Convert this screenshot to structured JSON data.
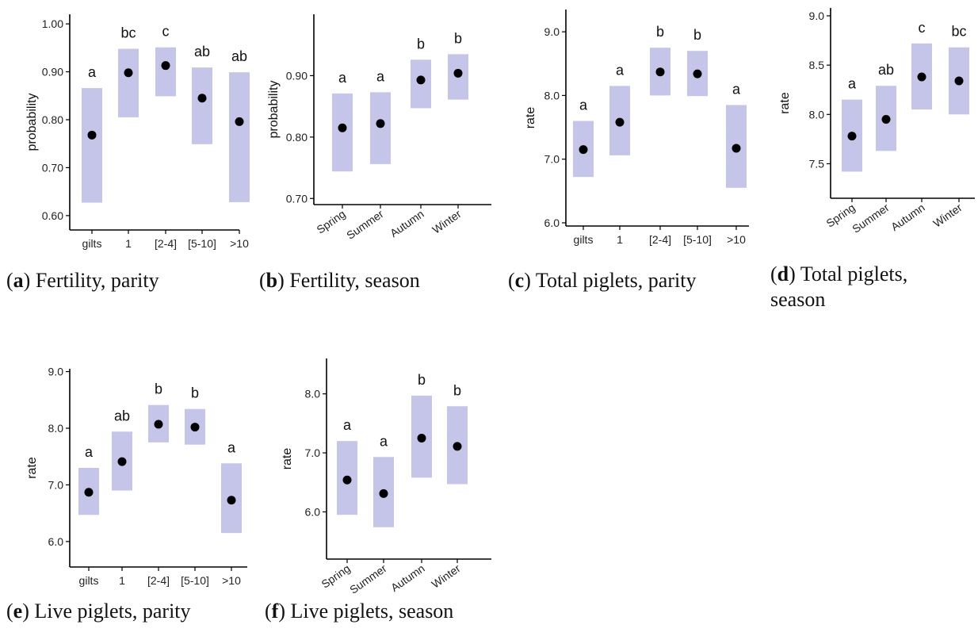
{
  "colors": {
    "interval_fill": "#c5c5e9",
    "point": "#000000"
  },
  "chart_data": [
    {
      "type": "scatter",
      "panel": "a",
      "caption_text": "Fertility, parity",
      "ylabel": "probability",
      "categories": [
        "gilts",
        "1",
        "[2-4]",
        "[5-10]",
        ">10"
      ],
      "values": [
        0.768,
        0.898,
        0.913,
        0.845,
        0.796
      ],
      "lower": [
        0.627,
        0.805,
        0.849,
        0.749,
        0.628
      ],
      "upper": [
        0.866,
        0.948,
        0.951,
        0.909,
        0.899
      ],
      "letters": [
        "a",
        "bc",
        "c",
        "ab",
        "ab"
      ],
      "ylim": [
        0.57,
        1.02
      ],
      "yticks": [
        0.6,
        0.7,
        0.8,
        0.9,
        1.0
      ],
      "ytick_labels": [
        "0.60",
        "0.70",
        "0.80",
        "0.90",
        "1.00"
      ],
      "xrotate": false
    },
    {
      "type": "scatter",
      "panel": "b",
      "caption_text": "Fertility, season",
      "ylabel": "probability",
      "categories": [
        "Spring",
        "Summer",
        "Autumn",
        "Winter"
      ],
      "values": [
        0.815,
        0.822,
        0.893,
        0.904
      ],
      "lower": [
        0.744,
        0.756,
        0.847,
        0.861
      ],
      "upper": [
        0.871,
        0.873,
        0.926,
        0.935
      ],
      "letters": [
        "a",
        "a",
        "b",
        "b"
      ],
      "ylim": [
        0.69,
        1.0
      ],
      "yticks": [
        0.7,
        0.8,
        0.9
      ],
      "ytick_labels": [
        "0.70",
        "0.80",
        "0.90"
      ],
      "xrotate": true
    },
    {
      "type": "scatter",
      "panel": "c",
      "caption_text": "Total piglets, parity",
      "ylabel": "rate",
      "categories": [
        "gilts",
        "1",
        "[2-4]",
        "[5-10]",
        ">10"
      ],
      "values": [
        7.15,
        7.58,
        8.37,
        8.34,
        7.17
      ],
      "lower": [
        6.72,
        7.06,
        8.0,
        7.99,
        6.55
      ],
      "upper": [
        7.6,
        8.15,
        8.75,
        8.7,
        7.85
      ],
      "letters": [
        "a",
        "a",
        "b",
        "b",
        "a"
      ],
      "ylim": [
        5.95,
        9.35
      ],
      "yticks": [
        6.0,
        7.0,
        8.0,
        9.0
      ],
      "ytick_labels": [
        "6.0",
        "7.0",
        "8.0",
        "9.0"
      ],
      "xrotate": false
    },
    {
      "type": "scatter",
      "panel": "d",
      "caption_text": "Total piglets, season",
      "ylabel": "rate",
      "categories": [
        "Spring",
        "Summer",
        "Autumn",
        "Winter"
      ],
      "values": [
        7.78,
        7.95,
        8.38,
        8.34
      ],
      "lower": [
        7.42,
        7.63,
        8.05,
        8.0
      ],
      "upper": [
        8.15,
        8.29,
        8.72,
        8.68
      ],
      "letters": [
        "a",
        "ab",
        "c",
        "bc"
      ],
      "ylim": [
        7.15,
        9.08
      ],
      "yticks": [
        7.5,
        8.0,
        8.5,
        9.0
      ],
      "ytick_labels": [
        "7.5",
        "8.0",
        "8.5",
        "9.0"
      ],
      "xrotate": true
    },
    {
      "type": "scatter",
      "panel": "e",
      "caption_text": "Live piglets, parity",
      "ylabel": "rate",
      "categories": [
        "gilts",
        "1",
        "[2-4]",
        "[5-10]",
        ">10"
      ],
      "values": [
        6.87,
        7.41,
        8.07,
        8.02,
        6.73
      ],
      "lower": [
        6.47,
        6.9,
        7.75,
        7.71,
        6.15
      ],
      "upper": [
        7.3,
        7.94,
        8.41,
        8.34,
        7.38
      ],
      "letters": [
        "a",
        "ab",
        "b",
        "b",
        "a"
      ],
      "ylim": [
        5.55,
        9.05
      ],
      "yticks": [
        6.0,
        7.0,
        8.0,
        9.0
      ],
      "ytick_labels": [
        "6.0",
        "7.0",
        "8.0",
        "9.0"
      ],
      "xrotate": false
    },
    {
      "type": "scatter",
      "panel": "f",
      "caption_text": "Live piglets, season",
      "ylabel": "rate",
      "categories": [
        "Spring",
        "Summer",
        "Autumn",
        "Winter"
      ],
      "values": [
        6.54,
        6.31,
        7.25,
        7.11
      ],
      "lower": [
        5.95,
        5.74,
        6.58,
        6.47
      ],
      "upper": [
        7.2,
        6.93,
        7.97,
        7.79
      ],
      "letters": [
        "a",
        "a",
        "b",
        "b"
      ],
      "ylim": [
        5.2,
        8.6
      ],
      "yticks": [
        6.0,
        7.0,
        8.0
      ],
      "ytick_labels": [
        "6.0",
        "7.0",
        "8.0"
      ],
      "xrotate": true
    }
  ]
}
